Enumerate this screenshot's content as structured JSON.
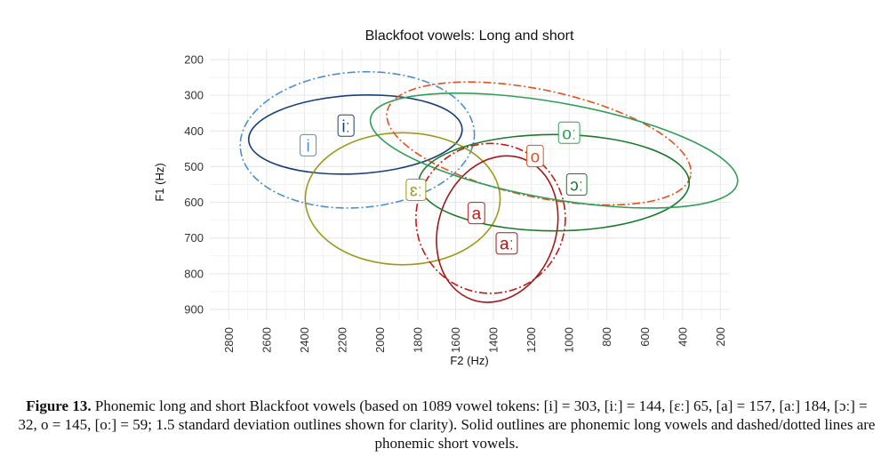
{
  "chart_data": {
    "type": "scatter",
    "title": "Blackfoot vowels: Long and short",
    "xlabel": "F2 (Hz)",
    "ylabel": "F1 (Hz)",
    "x_reversed": true,
    "y_reversed": true,
    "xlim": [
      2900,
      150
    ],
    "ylim": [
      170,
      930
    ],
    "x_ticks": [
      2800,
      2600,
      2400,
      2200,
      2000,
      1800,
      1600,
      1400,
      1200,
      1000,
      800,
      600,
      400,
      200
    ],
    "y_ticks": [
      200,
      300,
      400,
      500,
      600,
      700,
      800,
      900
    ],
    "grid": true,
    "series": [
      {
        "name": "i",
        "label": "i",
        "length": "short",
        "color": "#4a8fd0",
        "style": "dashdot",
        "label_pos": [
          2380,
          440
        ],
        "ellipse": {
          "center": [
            2120,
            425
          ],
          "radius_x": 620,
          "radius_y": 190,
          "angle": -4
        }
      },
      {
        "name": "iː",
        "label": "iː",
        "length": "long",
        "color": "#17407a",
        "style": "solid",
        "label_pos": [
          2180,
          385
        ],
        "ellipse": {
          "center": [
            2130,
            410
          ],
          "radius_x": 565,
          "radius_y": 110,
          "angle": -3
        }
      },
      {
        "name": "ɛː",
        "label": "ɛː",
        "length": "long",
        "color": "#9b9a1c",
        "style": "solid",
        "label_pos": [
          1810,
          565
        ],
        "ellipse": {
          "center": [
            1880,
            590
          ],
          "radius_x": 515,
          "radius_y": 185,
          "angle": 0
        }
      },
      {
        "name": "a",
        "label": "a",
        "length": "short",
        "color": "#c01a1a",
        "style": "dashdot",
        "label_pos": [
          1490,
          630
        ],
        "ellipse": {
          "center": [
            1415,
            645
          ],
          "radius_x": 395,
          "radius_y": 210,
          "angle": 0
        }
      },
      {
        "name": "aː",
        "label": "aː",
        "length": "long",
        "color": "#a31818",
        "style": "solid",
        "label_pos": [
          1330,
          715
        ],
        "ellipse": {
          "center": [
            1380,
            675
          ],
          "radius_x": 310,
          "radius_y": 210,
          "angle": 20
        }
      },
      {
        "name": "o",
        "label": "o",
        "length": "short",
        "color": "#e2511e",
        "style": "dashdot",
        "label_pos": [
          1180,
          470
        ],
        "ellipse": {
          "center": [
            1160,
            435
          ],
          "radius_x": 820,
          "radius_y": 150,
          "angle": 12
        }
      },
      {
        "name": "ɔː",
        "label": "ɔː",
        "length": "long",
        "color": "#1b7a2a",
        "style": "solid",
        "label_pos": [
          960,
          550
        ],
        "ellipse": {
          "center": [
            1080,
            545
          ],
          "radius_x": 715,
          "radius_y": 135,
          "angle": 0
        }
      },
      {
        "name": "oː",
        "label": "oː",
        "length": "long",
        "color": "#2f9e57",
        "style": "solid",
        "label_pos": [
          1000,
          405
        ],
        "ellipse": {
          "center": [
            1080,
            455
          ],
          "radius_x": 985,
          "radius_y": 135,
          "angle": 10
        }
      }
    ]
  },
  "caption": {
    "label": "Figure 13.",
    "text": " Phonemic long and short Blackfoot vowels (based on 1089 vowel tokens: [i] = 303, [iː] = 144, [ɛː] 65, [a] = 157, [aː] 184, [ɔː] = 32, o = 145, [oː] = 59; 1.5 standard deviation outlines shown for clarity). Solid outlines are phonemic long vowels and dashed/dotted lines are phonemic short vowels."
  }
}
